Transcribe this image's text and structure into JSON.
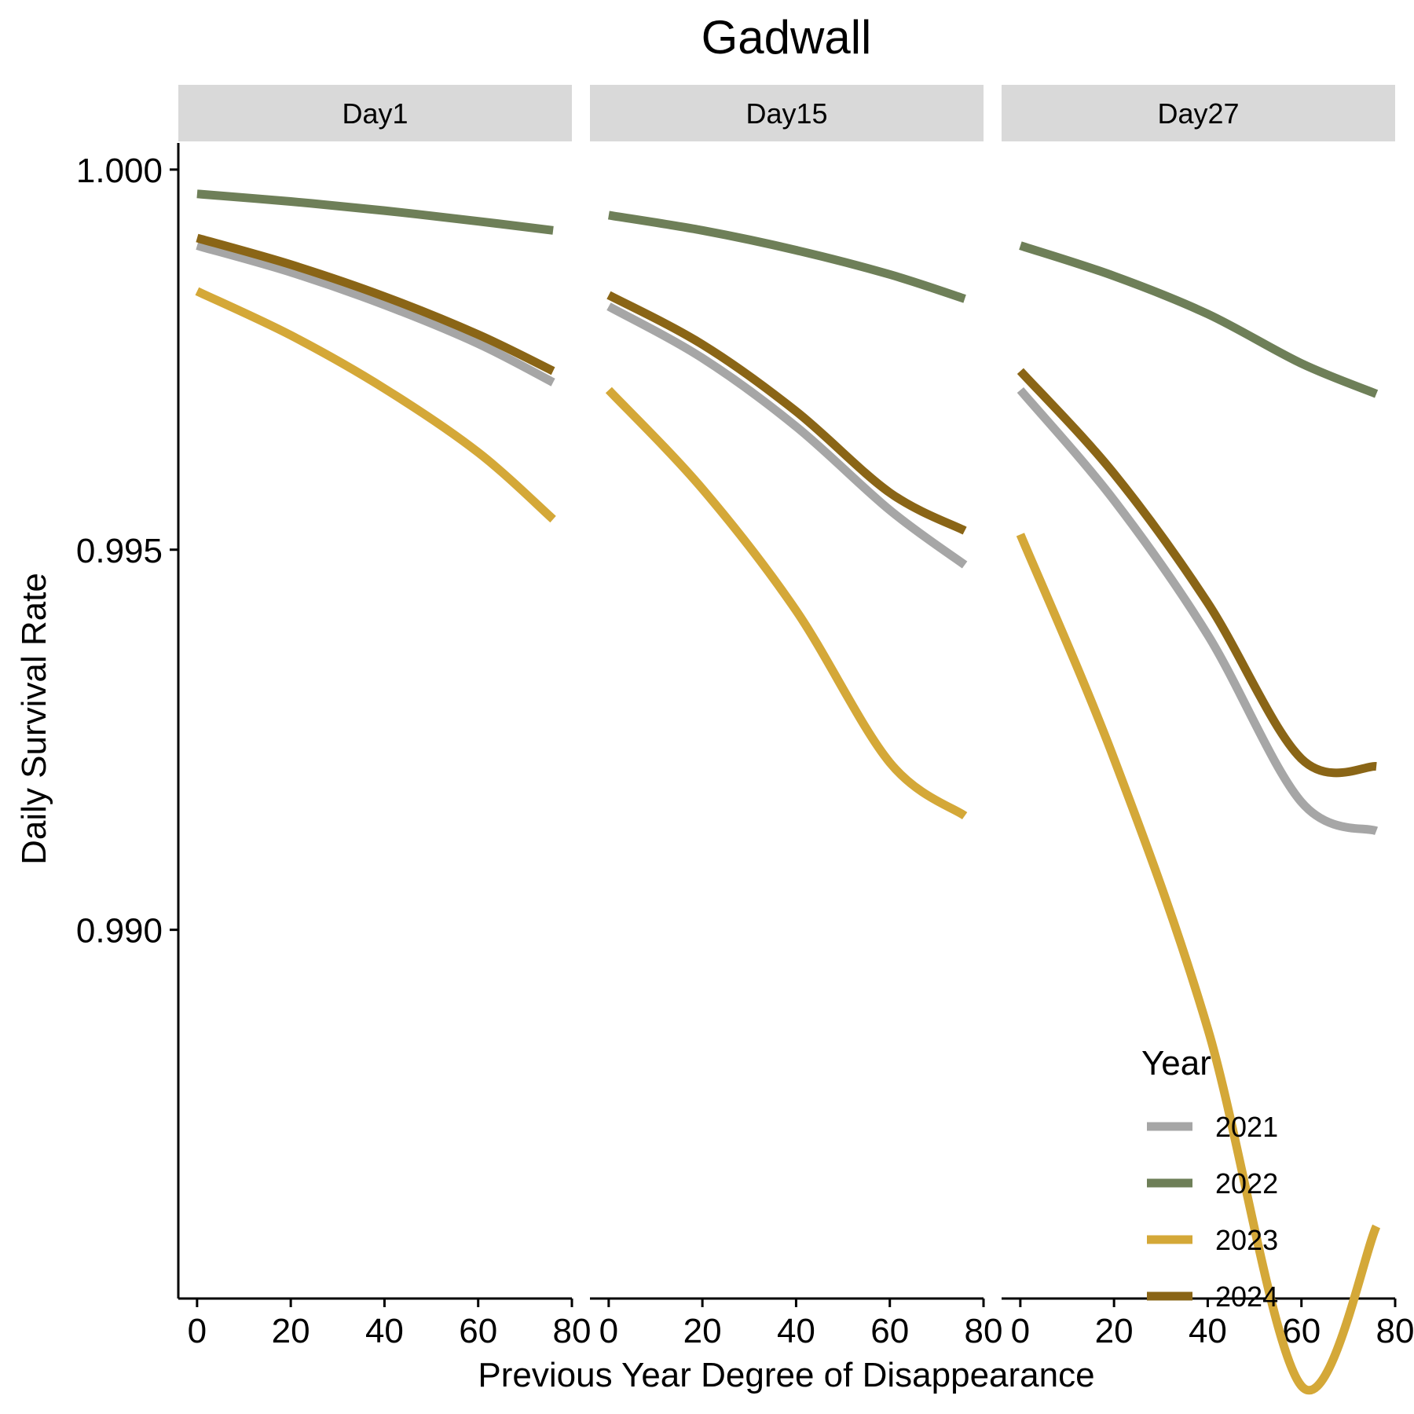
{
  "chart_data": {
    "type": "line",
    "title": "Gadwall",
    "xlabel": "Previous Year Degree of Disappearance",
    "ylabel": "Daily Survival Rate",
    "xlim": [
      -4,
      80
    ],
    "ylim": [
      0.98515,
      1.00035
    ],
    "x_ticks": [
      0,
      20,
      40,
      60,
      80
    ],
    "y_ticks": [
      0.99,
      0.995,
      1.0
    ],
    "y_tick_labels": [
      "0.990",
      "0.995",
      "1.000"
    ],
    "grid": false,
    "legend": {
      "title": "Year",
      "position": "bottom-right",
      "entries": [
        "2021",
        "2022",
        "2023",
        "2024"
      ]
    },
    "colors": {
      "2021": "#a6a6a6",
      "2022": "#6e7f58",
      "2023": "#d4a838",
      "2024": "#8a6516"
    },
    "facets": [
      {
        "label": "Day1",
        "series": [
          {
            "name": "2021",
            "x": [
              0,
              20,
              40,
              60,
              76
            ],
            "y": [
              0.999,
              0.99865,
              0.99822,
              0.99771,
              0.9972
            ]
          },
          {
            "name": "2022",
            "x": [
              0,
              20,
              40,
              60,
              76
            ],
            "y": [
              0.99968,
              0.99958,
              0.99946,
              0.99932,
              0.9992
            ]
          },
          {
            "name": "2023",
            "x": [
              0,
              20,
              40,
              60,
              76
            ],
            "y": [
              0.9984,
              0.99782,
              0.99712,
              0.99628,
              0.9954
            ]
          },
          {
            "name": "2024",
            "x": [
              0,
              20,
              40,
              60,
              76
            ],
            "y": [
              0.9991,
              0.99875,
              0.99833,
              0.99783,
              0.99735
            ]
          }
        ]
      },
      {
        "label": "Day15",
        "series": [
          {
            "name": "2021",
            "x": [
              0,
              20,
              40,
              60,
              76
            ],
            "y": [
              0.9982,
              0.99752,
              0.99662,
              0.99552,
              0.9948
            ]
          },
          {
            "name": "2022",
            "x": [
              0,
              20,
              40,
              60,
              76
            ],
            "y": [
              0.9994,
              0.9992,
              0.99894,
              0.99862,
              0.9983
            ]
          },
          {
            "name": "2023",
            "x": [
              0,
              20,
              40,
              60,
              76
            ],
            "y": [
              0.9971,
              0.9958,
              0.9942,
              0.9922,
              0.9915
            ]
          },
          {
            "name": "2024",
            "x": [
              0,
              20,
              40,
              60,
              76
            ],
            "y": [
              0.99835,
              0.9977,
              0.99682,
              0.99575,
              0.99525
            ]
          }
        ]
      },
      {
        "label": "Day27",
        "series": [
          {
            "name": "2021",
            "x": [
              0,
              20,
              40,
              60,
              76
            ],
            "y": [
              0.9971,
              0.99565,
              0.99388,
              0.99168,
              0.9913
            ]
          },
          {
            "name": "2022",
            "x": [
              0,
              20,
              40,
              60,
              76
            ],
            "y": [
              0.999,
              0.9986,
              0.9981,
              0.99745,
              0.99705
            ]
          },
          {
            "name": "2023",
            "x": [
              0,
              20,
              40,
              60,
              76
            ],
            "y": [
              0.9952,
              0.99225,
              0.9887,
              0.984,
              0.9861
            ]
          },
          {
            "name": "2024",
            "x": [
              0,
              20,
              40,
              60,
              76
            ],
            "y": [
              0.99735,
              0.996,
              0.9943,
              0.99225,
              0.99215
            ]
          }
        ]
      }
    ]
  }
}
